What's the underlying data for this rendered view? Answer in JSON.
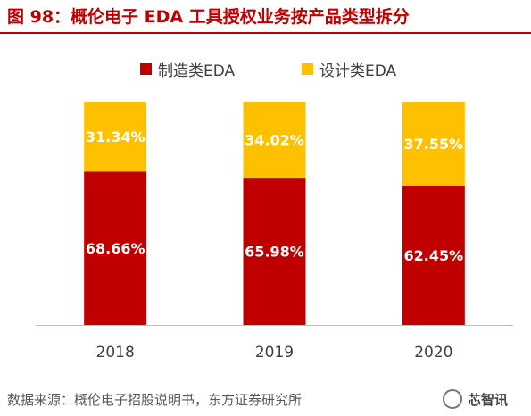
{
  "title": "图 98：概伦电子 EDA 工具授权业务按产品类型拆分",
  "source": "数据来源：概伦电子招股说明书，东方证券研究所",
  "watermark": "芯智讯",
  "colors": {
    "title": "#c00000",
    "series": [
      "#c00000",
      "#ffc000"
    ]
  },
  "chart_data": {
    "type": "bar",
    "stacked": true,
    "title": "",
    "xlabel": "",
    "ylabel": "",
    "ylim": [
      0,
      100
    ],
    "unit": "%",
    "grid": false,
    "legend_position": "top-center",
    "categories": [
      "2018",
      "2019",
      "2020"
    ],
    "series": [
      {
        "name": "制造类EDA",
        "color": "#c00000",
        "values": [
          68.66,
          65.98,
          62.45
        ],
        "labels": [
          "68.66%",
          "65.98%",
          "62.45%"
        ]
      },
      {
        "name": "设计类EDA",
        "color": "#ffc000",
        "values": [
          31.34,
          34.02,
          37.55
        ],
        "labels": [
          "31.34%",
          "34.02%",
          "37.55%"
        ]
      }
    ]
  }
}
